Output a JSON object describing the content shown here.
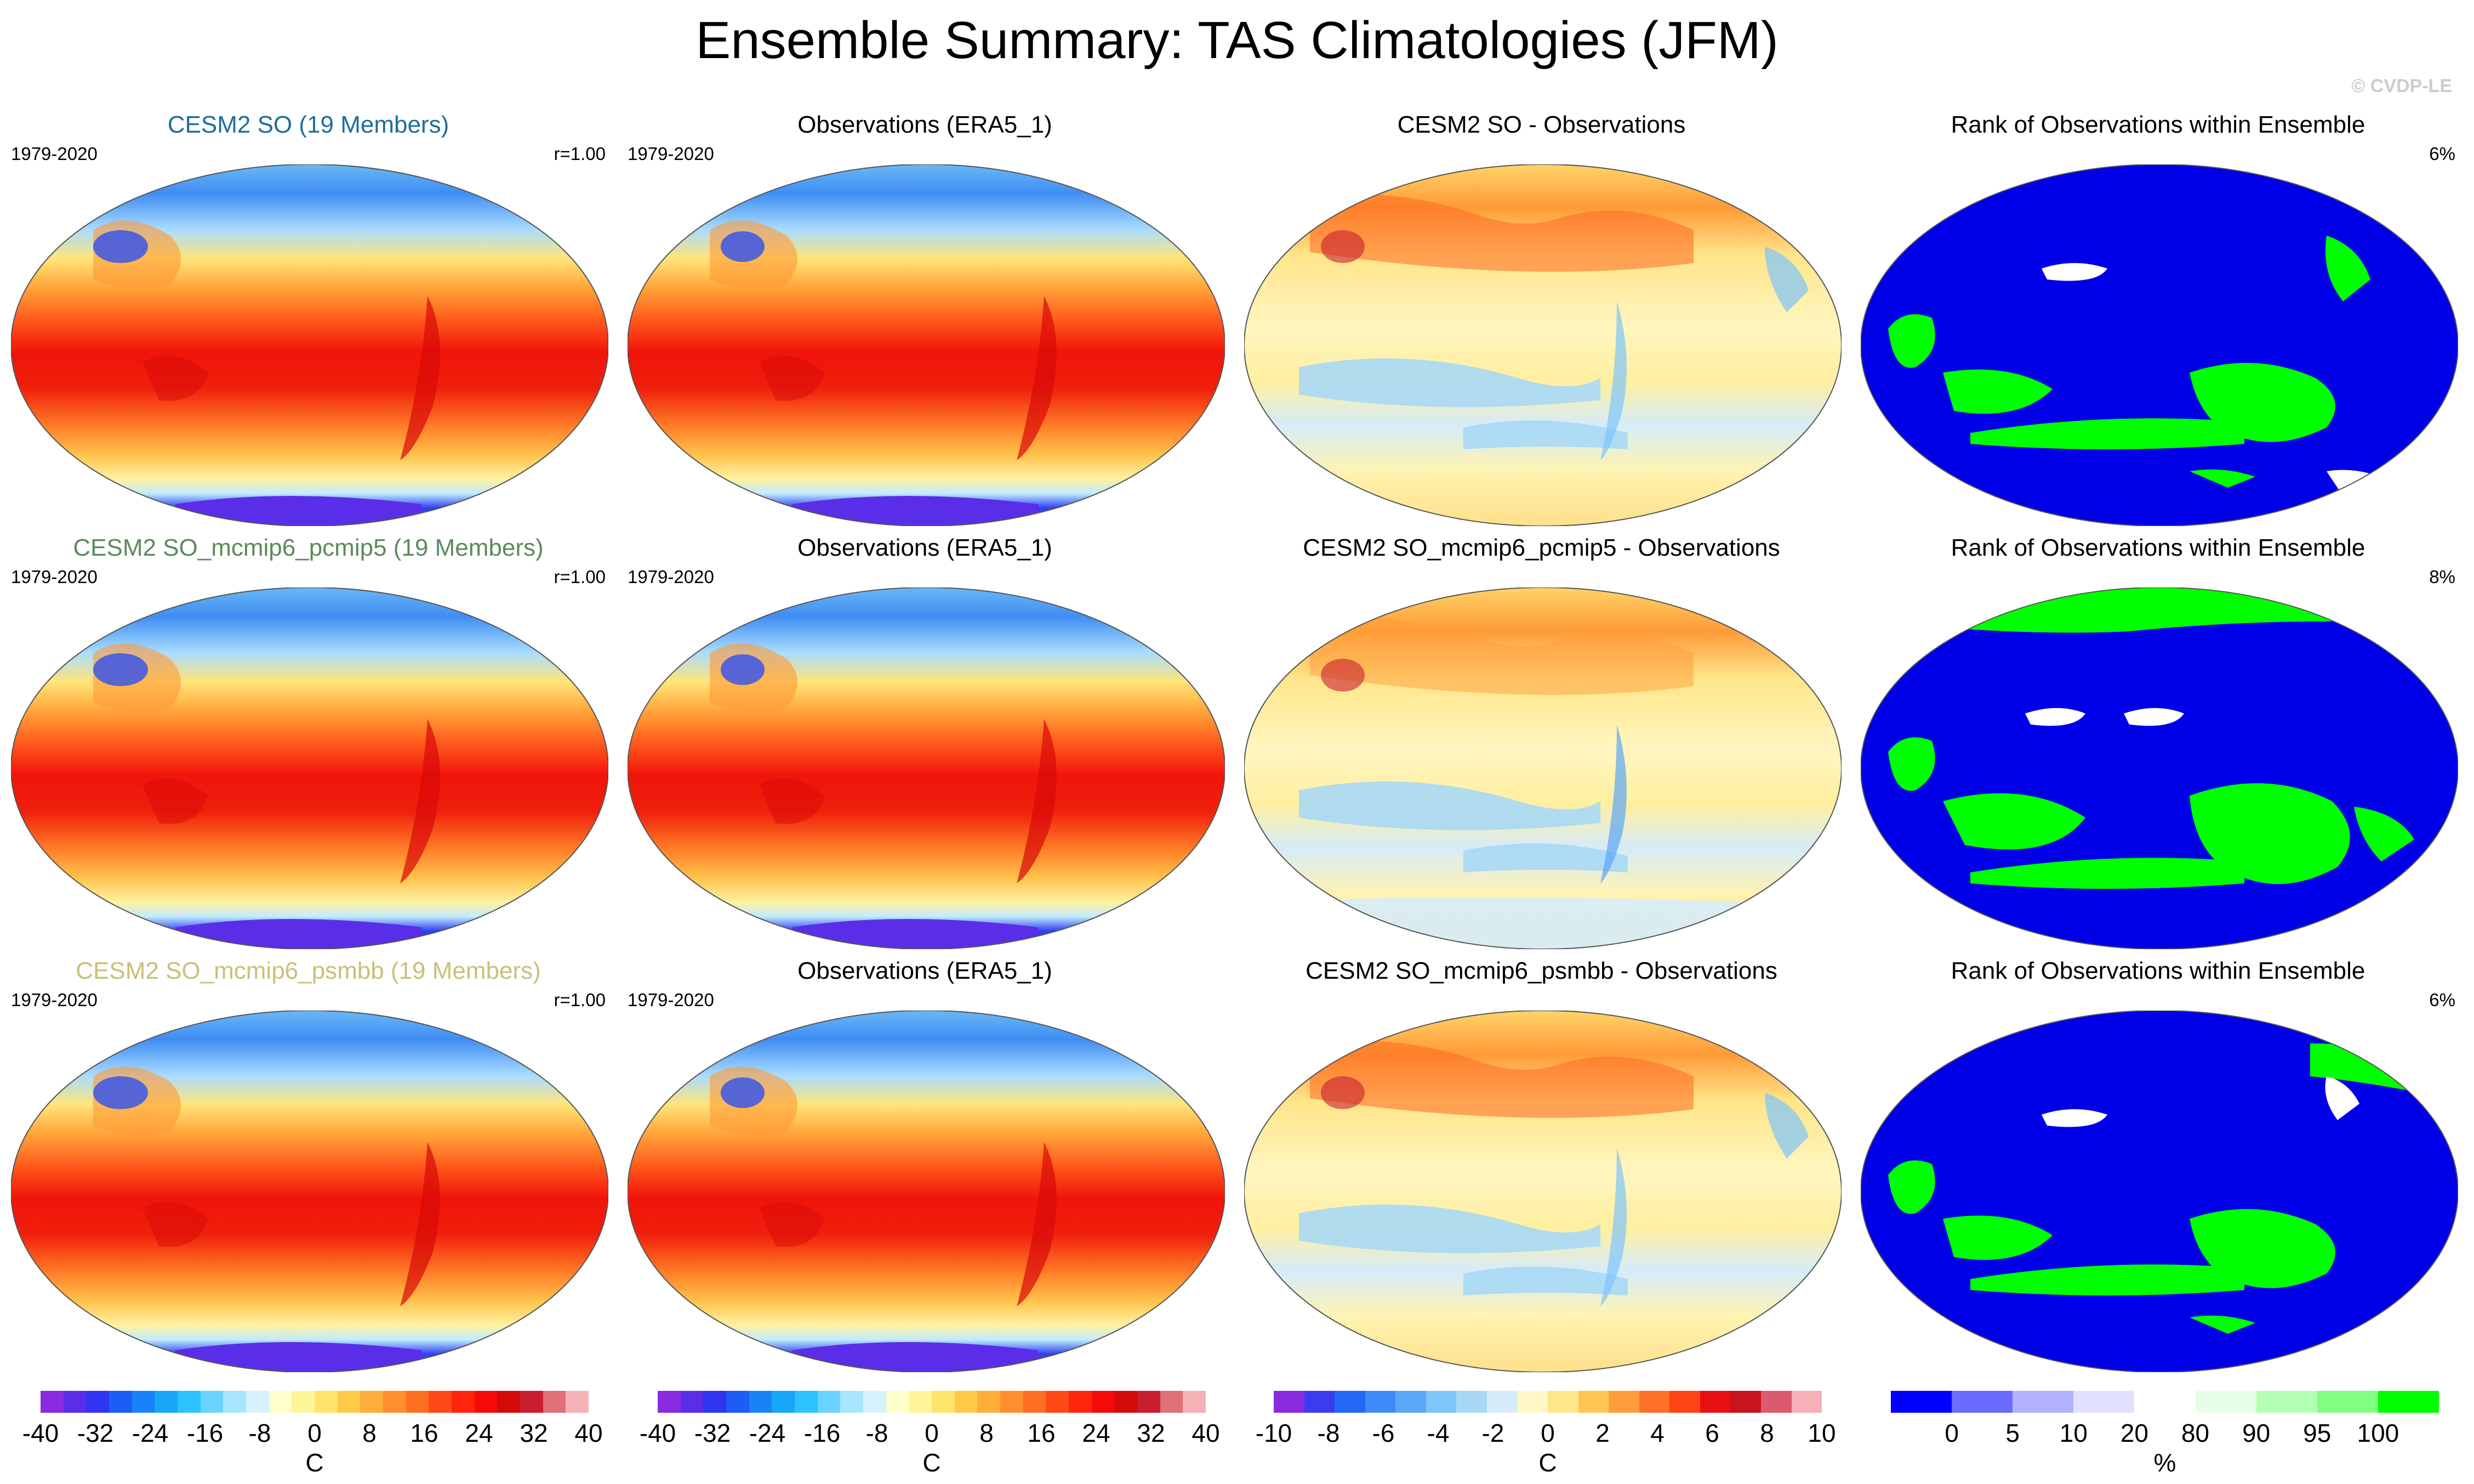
{
  "title": "Ensemble Summary: TAS Climatologies (JFM)",
  "copyright": "© CVDP-LE",
  "colors": {
    "temp_scale": [
      "#8a2be2",
      "#5a2ee8",
      "#2f35f0",
      "#1d5cf5",
      "#1a82f7",
      "#18a6f8",
      "#2bc2ff",
      "#6ad3ff",
      "#a8e6ff",
      "#d6f2ff",
      "#ffffcc",
      "#fff59a",
      "#ffe36b",
      "#ffca48",
      "#ffad3a",
      "#ff8f2e",
      "#ff6f22",
      "#ff4a17",
      "#ff240c",
      "#f50a0a",
      "#d40a0a",
      "#c81e2e",
      "#e0707a",
      "#f5b3b8"
    ],
    "diff_scale": [
      "#8a2be2",
      "#3a3cf0",
      "#2468f5",
      "#3e8bf7",
      "#5ba7f7",
      "#7ec5fa",
      "#a8d8f5",
      "#d6ecfa",
      "#fff8c6",
      "#ffe68a",
      "#ffc553",
      "#ff9d3a",
      "#ff702a",
      "#ff4515",
      "#e81010",
      "#c8141e",
      "#dc5a6e",
      "#f5b0b8"
    ],
    "rank_scale": [
      "#0000ff",
      "#6b6bff",
      "#b2b2ff",
      "#e0e0ff",
      "#ffffff",
      "#e6ffe6",
      "#b3ffb3",
      "#80ff80",
      "#00ff00"
    ],
    "rank_main": "#0000e8",
    "rank_green": "#00ff00",
    "rank_white": "#ffffff"
  },
  "rows": [
    {
      "model_label": "CESM2 SO (19 Members)",
      "model_label_color": "#1f6d9c",
      "diff_label": "CESM2 SO - Observations",
      "rank_label": "Rank of Observations within Ensemble",
      "rank_pct": "6%",
      "years": "1979-2020",
      "r_value": "r=1.00",
      "obs_label": "Observations (ERA5_1)",
      "obs_years": "1979-2020"
    },
    {
      "model_label": "CESM2 SO_mcmip6_pcmip5 (19 Members)",
      "model_label_color": "#5c8a5c",
      "diff_label": "CESM2 SO_mcmip6_pcmip5 - Observations",
      "rank_label": "Rank of Observations within Ensemble",
      "rank_pct": "8%",
      "years": "1979-2020",
      "r_value": "r=1.00",
      "obs_label": "Observations (ERA5_1)",
      "obs_years": "1979-2020"
    },
    {
      "model_label": "CESM2 SO_mcmip6_psmbb (19 Members)",
      "model_label_color": "#c9c07a",
      "diff_label": "CESM2 SO_mcmip6_psmbb - Observations",
      "rank_label": "Rank of Observations within Ensemble",
      "rank_pct": "6%",
      "years": "1979-2020",
      "r_value": "r=1.00",
      "obs_label": "Observations (ERA5_1)",
      "obs_years": "1979-2020"
    }
  ],
  "colorbars": {
    "temp": {
      "ticks": [
        "-40",
        "-32",
        "-24",
        "-16",
        "-8",
        "0",
        "8",
        "16",
        "24",
        "32",
        "40"
      ],
      "unit": "C"
    },
    "diff": {
      "ticks": [
        "-10",
        "-8",
        "-6",
        "-4",
        "-2",
        "0",
        "2",
        "4",
        "6",
        "8",
        "10"
      ],
      "unit": "C"
    },
    "rank": {
      "ticks": [
        "0",
        "5",
        "10",
        "20",
        "80",
        "90",
        "95",
        "100"
      ],
      "unit": "%"
    }
  },
  "chart_data": {
    "type": "heatmap",
    "title": "Ensemble Summary: TAS Climatologies (JFM)",
    "variable": "TAS",
    "season": "JFM",
    "period": "1979-2020",
    "temp_range_C": [
      -40,
      40
    ],
    "diff_range_C": [
      -10,
      10
    ],
    "rank_percent_levels": [
      0,
      5,
      10,
      20,
      80,
      90,
      95,
      100
    ],
    "panels": [
      {
        "row": 1,
        "col": 1,
        "field": "CESM2 SO (19 Members)",
        "pattern_r": 1.0
      },
      {
        "row": 1,
        "col": 2,
        "field": "Observations (ERA5_1)"
      },
      {
        "row": 1,
        "col": 3,
        "field": "CESM2 SO - Observations"
      },
      {
        "row": 1,
        "col": 4,
        "field": "Rank of Observations within Ensemble",
        "percent": 6
      },
      {
        "row": 2,
        "col": 1,
        "field": "CESM2 SO_mcmip6_pcmip5 (19 Members)",
        "pattern_r": 1.0
      },
      {
        "row": 2,
        "col": 2,
        "field": "Observations (ERA5_1)"
      },
      {
        "row": 2,
        "col": 3,
        "field": "CESM2 SO_mcmip6_pcmip5 - Observations"
      },
      {
        "row": 2,
        "col": 4,
        "field": "Rank of Observations within Ensemble",
        "percent": 8
      },
      {
        "row": 3,
        "col": 1,
        "field": "CESM2 SO_mcmip6_psmbb (19 Members)",
        "pattern_r": 1.0
      },
      {
        "row": 3,
        "col": 2,
        "field": "Observations (ERA5_1)"
      },
      {
        "row": 3,
        "col": 3,
        "field": "CESM2 SO_mcmip6_psmbb - Observations"
      },
      {
        "row": 3,
        "col": 4,
        "field": "Rank of Observations within Ensemble",
        "percent": 6
      }
    ]
  }
}
